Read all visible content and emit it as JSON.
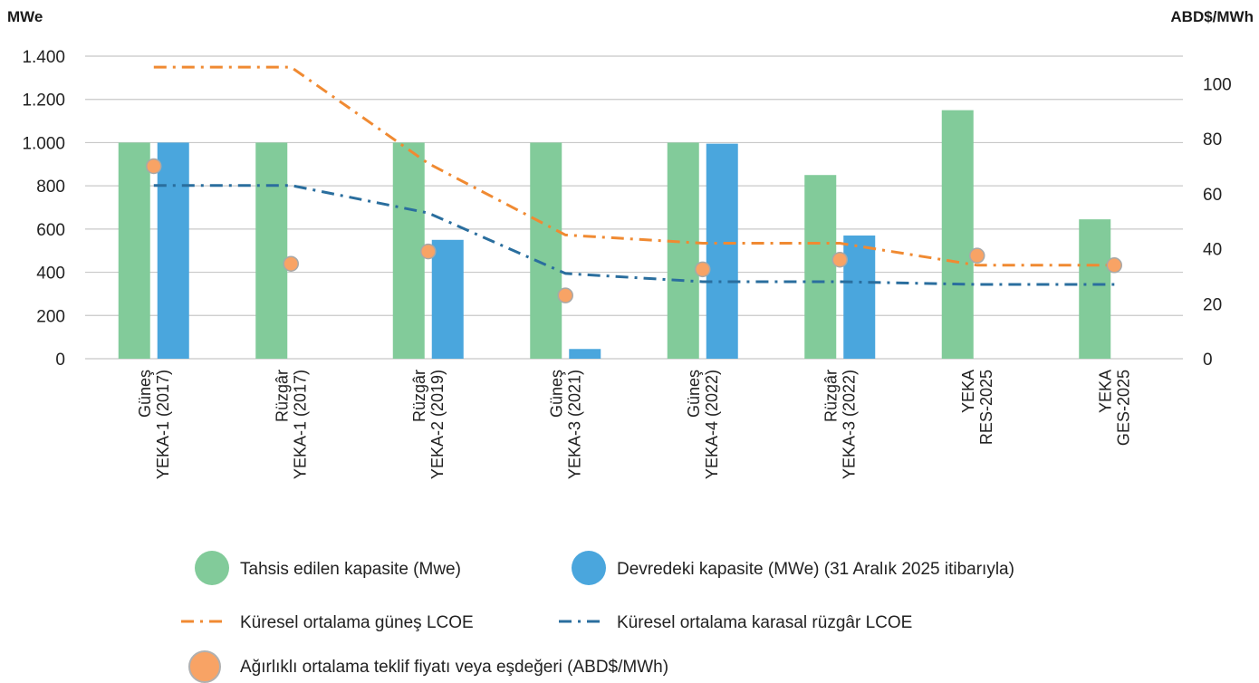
{
  "chart_data": {
    "type": "bar",
    "left_axis_title": "MWe",
    "right_axis_title": "ABD$/MWh",
    "y_left": {
      "min": 0,
      "max": 1400,
      "ticks": [
        0,
        200,
        400,
        600,
        800,
        1000,
        1200,
        1400
      ],
      "tick_labels": [
        "0",
        "200",
        "400",
        "600",
        "800",
        "1.000",
        "1.200",
        "1.400"
      ]
    },
    "y_right": {
      "min": 0,
      "max": 110,
      "ticks": [
        0,
        20,
        40,
        60,
        80,
        100
      ],
      "tick_labels": [
        "0",
        "20",
        "40",
        "60",
        "80",
        "100"
      ]
    },
    "grid": true,
    "legend_position": "bottom",
    "categories": [
      {
        "line1": "Güneş",
        "line2": "YEKA-1 (2017)"
      },
      {
        "line1": "Rüzgâr",
        "line2": "YEKA-1 (2017)"
      },
      {
        "line1": "Rüzgâr",
        "line2": "YEKA-2 (2019)"
      },
      {
        "line1": "Güneş",
        "line2": "YEKA-3 (2021)"
      },
      {
        "line1": "Güneş",
        "line2": "YEKA-4 (2022)"
      },
      {
        "line1": "Rüzgâr",
        "line2": "YEKA-3 (2022)"
      },
      {
        "line1": "YEKA",
        "line2": "RES-2025"
      },
      {
        "line1": "YEKA",
        "line2": "GES-2025"
      }
    ],
    "series": [
      {
        "name": "Tahsis edilen kapasite (Mwe)",
        "kind": "bar",
        "axis": "left",
        "color": "#82cb9a",
        "values": [
          1000,
          1000,
          1000,
          1000,
          1000,
          850,
          1150,
          645
        ]
      },
      {
        "name": "Devredeki kapasite (MWe) (31 Aralık 2025 itibarıyla)",
        "kind": "bar",
        "axis": "left",
        "color": "#4aa6dd",
        "values": [
          1000,
          null,
          550,
          45,
          995,
          570,
          null,
          null
        ]
      },
      {
        "name": "Küresel ortalama güneş LCOE",
        "kind": "line",
        "axis": "right",
        "color": "#f08a32",
        "dash": "dash-dot",
        "values": [
          106,
          106,
          71,
          45,
          42,
          42,
          34,
          34
        ]
      },
      {
        "name": "Küresel ortalama karasal rüzgâr LCOE",
        "kind": "line",
        "axis": "right",
        "color": "#2a6e9e",
        "dash": "dash-dot",
        "values": [
          63,
          63,
          53,
          31,
          28,
          28,
          27,
          27
        ]
      },
      {
        "name": "Ağırlıklı ortalama teklif fiyatı veya eşdeğeri (ABD$/MWh)",
        "kind": "scatter",
        "axis": "right",
        "color": "#f8a365",
        "values": [
          70,
          34.5,
          39,
          23,
          32.5,
          36,
          37.5,
          34
        ]
      }
    ]
  }
}
